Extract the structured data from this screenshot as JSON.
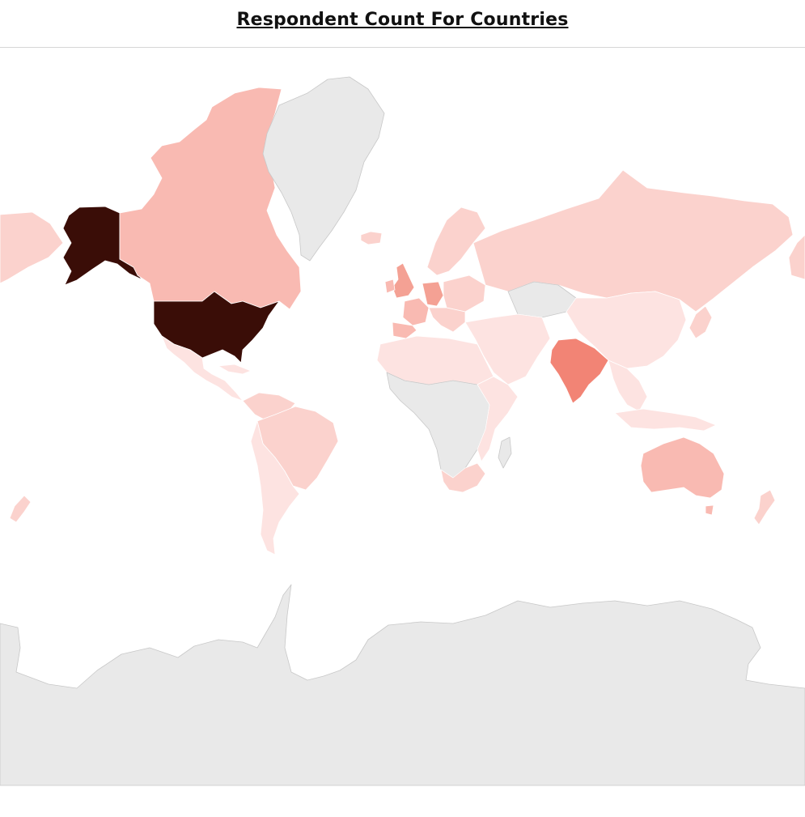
{
  "title": "Respondent Count For Countries",
  "colors": {
    "no_data": "#e9e9e9",
    "level_1": "#fde3e1",
    "level_2": "#fbd2cd",
    "level_3": "#f9bab2",
    "level_4": "#f4a194",
    "level_5": "#f28475",
    "level_6": "#3a0d07"
  },
  "map_data": {
    "type": "choropleth",
    "regions": [
      {
        "id": "usa",
        "name": "United States",
        "level": 6
      },
      {
        "id": "alaska",
        "name": "Alaska",
        "level": 6
      },
      {
        "id": "india",
        "name": "India",
        "level": 5
      },
      {
        "id": "uk",
        "name": "United Kingdom",
        "level": 4
      },
      {
        "id": "germany",
        "name": "Germany",
        "level": 4
      },
      {
        "id": "canada",
        "name": "Canada",
        "level": 3
      },
      {
        "id": "australia",
        "name": "Australia",
        "level": 3
      },
      {
        "id": "brazil",
        "name": "Brazil",
        "level": 2
      },
      {
        "id": "russia",
        "name": "Russia",
        "level": 2
      },
      {
        "id": "china",
        "name": "China",
        "level": 1
      },
      {
        "id": "mexico",
        "name": "Mexico",
        "level": 1
      },
      {
        "id": "greenland",
        "name": "Greenland",
        "level": 0
      },
      {
        "id": "antarctica",
        "name": "Antarctica",
        "level": 0
      }
    ]
  }
}
